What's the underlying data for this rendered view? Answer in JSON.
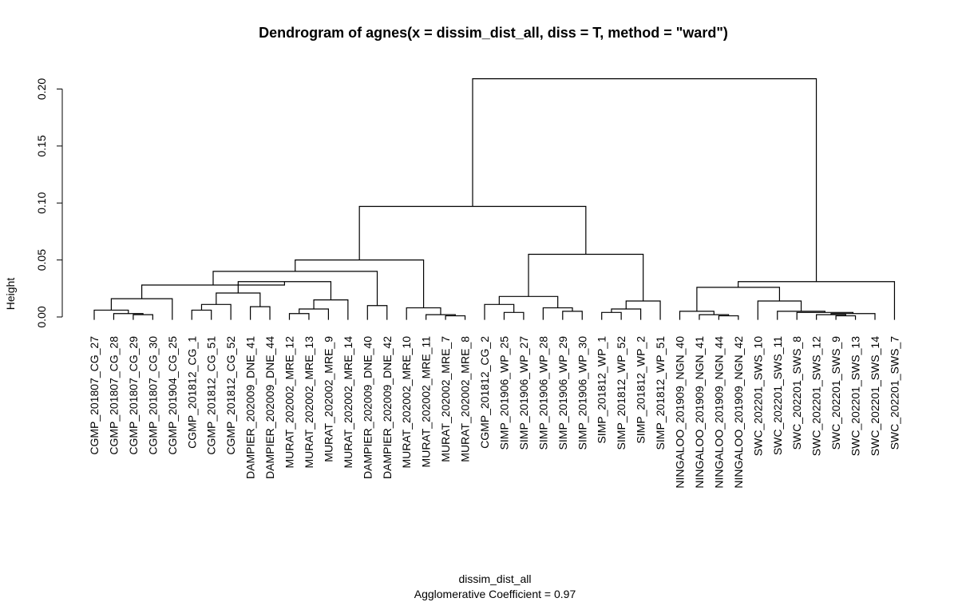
{
  "chart_data": {
    "type": "dendrogram",
    "title": "Dendrogram of  agnes(x = dissim_dist_all, diss = T, method = \"ward\")",
    "ylabel": "Height",
    "xlabel": "dissim_dist_all",
    "subtitle": "Agglomerative Coefficient =  0.97",
    "ylim": [
      0,
      0.22
    ],
    "yticks": [
      0.0,
      0.05,
      0.1,
      0.15,
      0.2
    ],
    "ytick_labels": [
      "0.00",
      "0.05",
      "0.10",
      "0.15",
      "0.20"
    ],
    "leaves": [
      "CGMP_201807_CG_27",
      "CGMP_201807_CG_28",
      "CGMP_201807_CG_29",
      "CGMP_201807_CG_30",
      "CGMP_201904_CG_25",
      "CGMP_201812_CG_1",
      "CGMP_201812_CG_51",
      "CGMP_201812_CG_52",
      "DAMPIER_202009_DNE_41",
      "DAMPIER_202009_DNE_44",
      "MURAT_202002_MRE_12",
      "MURAT_202002_MRE_13",
      "MURAT_202002_MRE_9",
      "MURAT_202002_MRE_14",
      "DAMPIER_202009_DNE_40",
      "DAMPIER_202009_DNE_42",
      "MURAT_202002_MRE_10",
      "MURAT_202002_MRE_11",
      "MURAT_202002_MRE_7",
      "MURAT_202002_MRE_8",
      "CGMP_201812_CG_2",
      "SIMP_201906_WP_25",
      "SIMP_201906_WP_27",
      "SIMP_201906_WP_28",
      "SIMP_201906_WP_29",
      "SIMP_201906_WP_30",
      "SIMP_201812_WP_1",
      "SIMP_201812_WP_52",
      "SIMP_201812_WP_2",
      "SIMP_201812_WP_51",
      "NINGALOO_201909_NGN_40",
      "NINGALOO_201909_NGN_41",
      "NINGALOO_201909_NGN_44",
      "NINGALOO_201909_NGN_42",
      "SWC_202201_SWS_10",
      "SWC_202201_SWS_11",
      "SWC_202201_SWS_8",
      "SWC_202201_SWS_12",
      "SWC_202201_SWS_9",
      "SWC_202201_SWS_13",
      "SWC_202201_SWS_14",
      "SWC_202201_SWS_7"
    ],
    "merges": [
      {
        "l": "L2",
        "r": "L3",
        "h": 0.002
      },
      {
        "l": "L1",
        "r": "M0",
        "h": 0.003
      },
      {
        "l": "L0",
        "r": "M1",
        "h": 0.006
      },
      {
        "l": "M2",
        "r": "L4",
        "h": 0.016
      },
      {
        "l": "L5",
        "r": "L6",
        "h": 0.006
      },
      {
        "l": "M4",
        "r": "L7",
        "h": 0.011
      },
      {
        "l": "L8",
        "r": "L9",
        "h": 0.009
      },
      {
        "l": "M5",
        "r": "M6",
        "h": 0.021
      },
      {
        "l": "L10",
        "r": "L11",
        "h": 0.003
      },
      {
        "l": "M8",
        "r": "L12",
        "h": 0.007
      },
      {
        "l": "M9",
        "r": "L13",
        "h": 0.015
      },
      {
        "l": "M7",
        "r": "M10",
        "h": 0.031
      },
      {
        "l": "M3",
        "r": "M11",
        "h": 0.028
      },
      {
        "l": "L14",
        "r": "L15",
        "h": 0.01
      },
      {
        "l": "M12",
        "r": "M13",
        "h": 0.04
      },
      {
        "l": "L18",
        "r": "L19",
        "h": 0.001
      },
      {
        "l": "L17",
        "r": "M15",
        "h": 0.002
      },
      {
        "l": "L16",
        "r": "M16",
        "h": 0.008
      },
      {
        "l": "M14",
        "r": "M17",
        "h": 0.05
      },
      {
        "l": "L21",
        "r": "L22",
        "h": 0.004
      },
      {
        "l": "L20",
        "r": "M19",
        "h": 0.011
      },
      {
        "l": "L24",
        "r": "L25",
        "h": 0.005
      },
      {
        "l": "L23",
        "r": "M21",
        "h": 0.008
      },
      {
        "l": "M20",
        "r": "M22",
        "h": 0.018
      },
      {
        "l": "L26",
        "r": "L27",
        "h": 0.004
      },
      {
        "l": "M24",
        "r": "L28",
        "h": 0.007
      },
      {
        "l": "M25",
        "r": "L29",
        "h": 0.014
      },
      {
        "l": "M23",
        "r": "M26",
        "h": 0.055
      },
      {
        "l": "M18",
        "r": "M27",
        "h": 0.097
      },
      {
        "l": "L32",
        "r": "L33",
        "h": 0.001
      },
      {
        "l": "L31",
        "r": "M29",
        "h": 0.002
      },
      {
        "l": "L30",
        "r": "M30",
        "h": 0.005
      },
      {
        "l": "L38",
        "r": "L39",
        "h": 0.001
      },
      {
        "l": "L37",
        "r": "M32",
        "h": 0.002
      },
      {
        "l": "M33",
        "r": "L40",
        "h": 0.003
      },
      {
        "l": "L36",
        "r": "M34",
        "h": 0.004
      },
      {
        "l": "L35",
        "r": "M35",
        "h": 0.005
      },
      {
        "l": "L34",
        "r": "M36",
        "h": 0.014
      },
      {
        "l": "M31",
        "r": "M37",
        "h": 0.026
      },
      {
        "l": "M38",
        "r": "L41",
        "h": 0.031
      },
      {
        "l": "M28",
        "r": "M39",
        "h": 0.209
      }
    ]
  }
}
